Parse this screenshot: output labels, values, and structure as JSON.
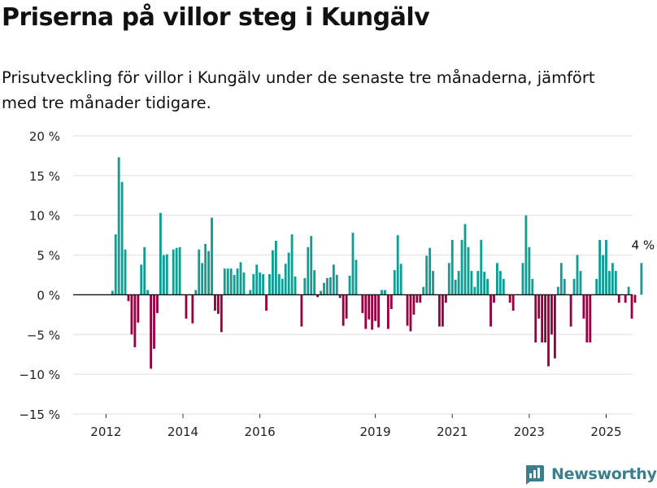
{
  "title": "Priserna på villor steg i Kungälv",
  "subtitle": "Prisutveckling för villor i Kungälv under de senaste tre månaderna, jämfört med tre månader tidigare.",
  "brand": "Newsworthy",
  "colors": {
    "positive": "#0e9e94",
    "negative": "#99003f",
    "grid": "#dddddd",
    "zero": "#111111",
    "brand": "#3b7f8c"
  },
  "chart_data": {
    "type": "bar",
    "x_unit": "month",
    "x_start": "2011-11",
    "ylim": [
      -15,
      20
    ],
    "yticks": [
      -15,
      -10,
      -5,
      0,
      5,
      10,
      15,
      20
    ],
    "ytick_labels": [
      "−15 %",
      "−10 %",
      "−5 %",
      "0 %",
      "5 %",
      "10 %",
      "15 %",
      "20 %"
    ],
    "xtick_labels": [
      {
        "date": "2012-01",
        "label": "2012"
      },
      {
        "date": "2014-01",
        "label": "2014"
      },
      {
        "date": "2016-01",
        "label": "2016"
      },
      {
        "date": "2019-01",
        "label": "2019"
      },
      {
        "date": "2021-01",
        "label": "2021"
      },
      {
        "date": "2023-01",
        "label": "2023"
      },
      {
        "date": "2025-01",
        "label": "2025"
      }
    ],
    "annotation": {
      "text": "4 %"
    },
    "values": [
      0,
      0,
      0.5,
      7.6,
      17.3,
      14.2,
      5.7,
      -0.8,
      -5,
      -6.6,
      -3.5,
      3.8,
      6,
      0.6,
      -9.3,
      -6.8,
      -2.3,
      10.3,
      5,
      5.1,
      0,
      5.7,
      5.9,
      6,
      0,
      -3,
      0,
      -3.6,
      0.6,
      5.7,
      4,
      6.4,
      5.5,
      9.7,
      -2,
      -2.4,
      -4.7,
      3.3,
      3.3,
      3.3,
      2.5,
      3.3,
      4.1,
      2.8,
      0,
      0.6,
      2.6,
      3.8,
      2.8,
      2.6,
      -2,
      2.6,
      5.6,
      6.8,
      2.6,
      2,
      3.9,
      5.3,
      7.6,
      2.3,
      0,
      -4,
      2.1,
      6,
      7.4,
      3.1,
      -0.3,
      0.5,
      1.5,
      2.1,
      2.2,
      3.8,
      2.5,
      -0.4,
      -3.9,
      -3,
      2.4,
      7.8,
      4.4,
      0,
      -2.3,
      -4.3,
      -3.1,
      -4.4,
      -3.3,
      -4.1,
      0.6,
      0.6,
      -4.3,
      -1.8,
      3.1,
      7.5,
      3.9,
      0,
      -3.9,
      -4.6,
      -2.5,
      -1,
      -1,
      1,
      4.9,
      5.9,
      3,
      0,
      -4,
      -4,
      -1,
      4,
      6.9,
      1.9,
      3,
      6.9,
      8.9,
      6,
      3,
      1,
      3,
      6.9,
      2.9,
      2,
      -4,
      -1,
      4,
      3,
      2,
      0,
      -1,
      -2,
      0,
      0,
      4,
      10,
      6,
      2,
      -6,
      -3,
      -6,
      -6,
      -9,
      -5,
      -8,
      1,
      4,
      2,
      0,
      -4,
      2,
      5,
      3,
      -3,
      -6,
      -6,
      0,
      2,
      6.9,
      5,
      6.9,
      3,
      4,
      3,
      -1,
      0,
      -1,
      1,
      -3,
      -1,
      0,
      4
    ]
  }
}
